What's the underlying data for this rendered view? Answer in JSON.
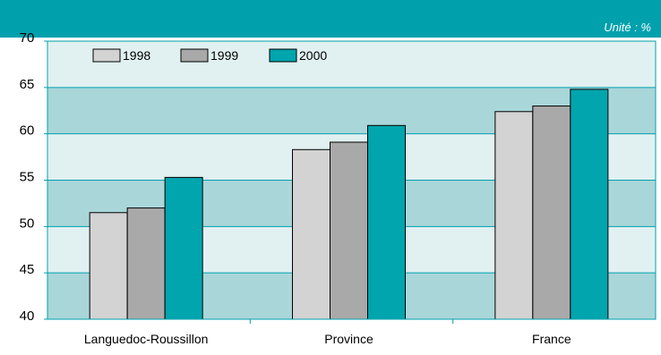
{
  "header": {
    "unit_label": "Unité : %"
  },
  "chart_data": {
    "type": "bar",
    "categories": [
      "Languedoc-Roussillon",
      "Province",
      "France"
    ],
    "series": [
      {
        "name": "1998",
        "values": [
          51.5,
          58.3,
          62.4
        ],
        "color": "#d3d3d3"
      },
      {
        "name": "1999",
        "values": [
          52.0,
          59.1,
          63.0
        ],
        "color": "#a9a9a9"
      },
      {
        "name": "2000",
        "values": [
          55.3,
          60.9,
          64.8
        ],
        "color": "#00a5ad"
      }
    ],
    "ylim": [
      40,
      70
    ],
    "yticks": [
      40,
      45,
      50,
      55,
      60,
      65,
      70
    ],
    "band_colors": [
      "#a9d6d9",
      "#e1f0f1"
    ],
    "grid": true,
    "legend_position": "top-left"
  }
}
